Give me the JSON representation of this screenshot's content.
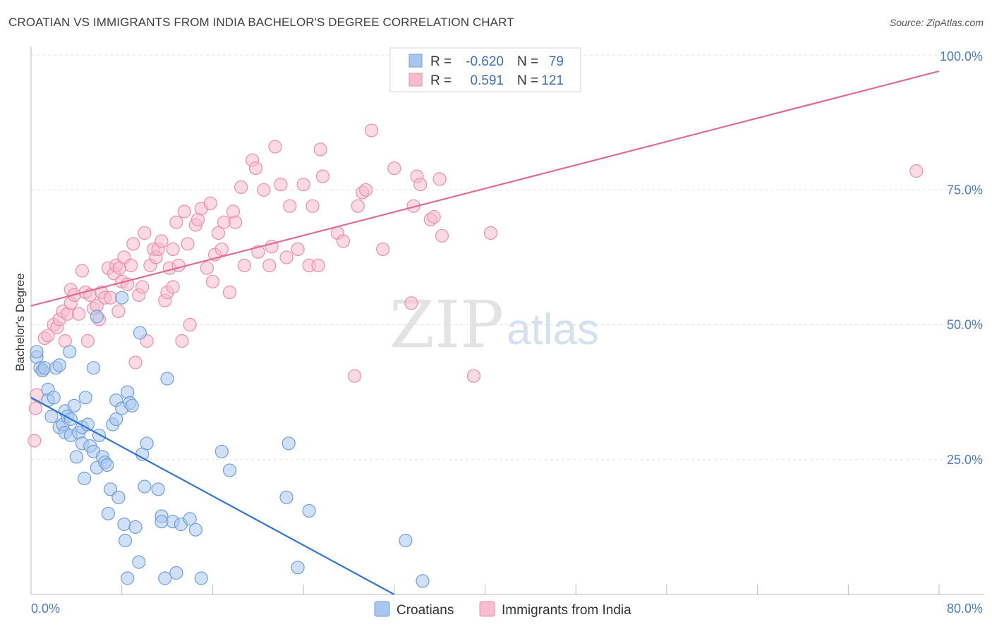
{
  "title": "CROATIAN VS IMMIGRANTS FROM INDIA BACHELOR'S DEGREE CORRELATION CHART",
  "source": "Source: ZipAtlas.com",
  "watermark": {
    "zip": "ZIP",
    "atlas": "atlas"
  },
  "legend_top": {
    "rows": [
      {
        "r_label": "R =",
        "r_value": "-0.620",
        "n_label": "N =",
        "n_value": "79"
      },
      {
        "r_label": "R =",
        "r_value": "0.591",
        "n_label": "N =",
        "n_value": "121"
      }
    ]
  },
  "chart_data": {
    "type": "scatter",
    "title": "CROATIAN VS IMMIGRANTS FROM INDIA BACHELOR'S DEGREE CORRELATION CHART",
    "xlabel": "",
    "ylabel": "Bachelor's Degree",
    "xlim": [
      0,
      80
    ],
    "ylim": [
      0,
      100
    ],
    "x_tick_labels": [
      "0.0%",
      "80.0%"
    ],
    "y_tick_labels": [
      "25.0%",
      "50.0%",
      "75.0%",
      "100.0%"
    ],
    "y_ticks": [
      25,
      50,
      75,
      100
    ],
    "grid": true,
    "legend_position": "bottom",
    "colors": {
      "croatians_fill": "#a9c7ee",
      "croatians_stroke": "#6f9fdc",
      "croatians_line": "#2f75d6",
      "india_fill": "#f7bccd",
      "india_stroke": "#eb8fab",
      "india_line": "#e06b94"
    },
    "series": [
      {
        "name": "Croatians",
        "trend": {
          "x0": 0,
          "y0": 36.5,
          "x1": 32,
          "y1": 0
        },
        "points": [
          [
            0.5,
            44
          ],
          [
            0.5,
            45
          ],
          [
            0.8,
            42
          ],
          [
            1,
            41.5
          ],
          [
            1.2,
            42
          ],
          [
            1.5,
            38
          ],
          [
            1.5,
            36
          ],
          [
            1.8,
            33
          ],
          [
            2,
            36.5
          ],
          [
            2.2,
            42
          ],
          [
            2.5,
            42.5
          ],
          [
            2.5,
            31
          ],
          [
            2.8,
            31.5
          ],
          [
            3,
            30
          ],
          [
            3,
            34
          ],
          [
            3.2,
            33
          ],
          [
            3.4,
            45
          ],
          [
            3.5,
            29.5
          ],
          [
            3.5,
            32.5
          ],
          [
            3.8,
            35
          ],
          [
            4,
            25.5
          ],
          [
            4.2,
            30
          ],
          [
            4.5,
            31
          ],
          [
            4.5,
            28
          ],
          [
            4.7,
            21.5
          ],
          [
            4.8,
            36.5
          ],
          [
            5,
            31.5
          ],
          [
            5.2,
            27.5
          ],
          [
            5.5,
            42
          ],
          [
            5.5,
            26.5
          ],
          [
            5.8,
            51.5
          ],
          [
            5.8,
            23.5
          ],
          [
            6,
            29.5
          ],
          [
            6.3,
            25.5
          ],
          [
            6.5,
            24.5
          ],
          [
            6.7,
            24
          ],
          [
            6.8,
            15
          ],
          [
            7,
            19.5
          ],
          [
            7.2,
            31.5
          ],
          [
            7.5,
            36
          ],
          [
            7.5,
            32.5
          ],
          [
            7.7,
            18
          ],
          [
            8,
            34.5
          ],
          [
            8,
            55
          ],
          [
            8.2,
            13
          ],
          [
            8.3,
            10
          ],
          [
            8.5,
            37.5
          ],
          [
            8.5,
            3
          ],
          [
            8.7,
            35.5
          ],
          [
            8.9,
            35
          ],
          [
            9.2,
            12.5
          ],
          [
            9.5,
            6
          ],
          [
            9.6,
            48.5
          ],
          [
            9.8,
            26
          ],
          [
            10,
            20
          ],
          [
            10.2,
            28
          ],
          [
            11.2,
            19.5
          ],
          [
            11.5,
            14.5
          ],
          [
            11.5,
            13.5
          ],
          [
            11.8,
            3
          ],
          [
            12,
            40
          ],
          [
            12.5,
            13.5
          ],
          [
            12.8,
            4
          ],
          [
            13.2,
            13
          ],
          [
            14,
            14
          ],
          [
            14.5,
            12
          ],
          [
            15,
            3
          ],
          [
            16.8,
            26.5
          ],
          [
            17.5,
            23
          ],
          [
            22.5,
            18
          ],
          [
            22.7,
            28
          ],
          [
            23.5,
            5
          ],
          [
            24.5,
            15.5
          ],
          [
            33,
            10
          ],
          [
            34.5,
            2.5
          ]
        ]
      },
      {
        "name": "Immigrants from India",
        "trend": {
          "x0": 0,
          "y0": 53.5,
          "x1": 80,
          "y1": 97
        },
        "points": [
          [
            0.3,
            28.5
          ],
          [
            0.4,
            34.5
          ],
          [
            0.5,
            37
          ],
          [
            1,
            41.5
          ],
          [
            1.2,
            47.5
          ],
          [
            1.5,
            48
          ],
          [
            2,
            50
          ],
          [
            2.3,
            49.5
          ],
          [
            2.5,
            51
          ],
          [
            2.8,
            52.5
          ],
          [
            3,
            47
          ],
          [
            3.2,
            52
          ],
          [
            3.5,
            54
          ],
          [
            3.5,
            56.5
          ],
          [
            3.8,
            55.5
          ],
          [
            4.2,
            52
          ],
          [
            4.5,
            60
          ],
          [
            4.8,
            56
          ],
          [
            5,
            47
          ],
          [
            5.2,
            55.5
          ],
          [
            5.5,
            53
          ],
          [
            5.8,
            53.5
          ],
          [
            6,
            51
          ],
          [
            6.2,
            56
          ],
          [
            6.5,
            55
          ],
          [
            6.8,
            60.5
          ],
          [
            7,
            55
          ],
          [
            7.3,
            59.5
          ],
          [
            7.5,
            61
          ],
          [
            7.7,
            52.5
          ],
          [
            7.8,
            60.5
          ],
          [
            8,
            58
          ],
          [
            8.2,
            62.5
          ],
          [
            8.5,
            57.5
          ],
          [
            8.8,
            61
          ],
          [
            9,
            65
          ],
          [
            9.2,
            43
          ],
          [
            9.5,
            55.5
          ],
          [
            9.8,
            57
          ],
          [
            10,
            67
          ],
          [
            10.2,
            47
          ],
          [
            10.5,
            61
          ],
          [
            10.8,
            64
          ],
          [
            11,
            62.5
          ],
          [
            11.2,
            64
          ],
          [
            11.5,
            65.5
          ],
          [
            11.8,
            54.5
          ],
          [
            12,
            56
          ],
          [
            12.2,
            60.5
          ],
          [
            12.5,
            57
          ],
          [
            12.5,
            64
          ],
          [
            12.8,
            69
          ],
          [
            13,
            61
          ],
          [
            13.3,
            47
          ],
          [
            13.5,
            71
          ],
          [
            13.8,
            65
          ],
          [
            14,
            50
          ],
          [
            14.5,
            68.5
          ],
          [
            14.7,
            69.5
          ],
          [
            15,
            71.5
          ],
          [
            15.5,
            60.5
          ],
          [
            15.8,
            72.5
          ],
          [
            16,
            58
          ],
          [
            16.2,
            63
          ],
          [
            16.5,
            67
          ],
          [
            16.8,
            64
          ],
          [
            17,
            69
          ],
          [
            17.5,
            56
          ],
          [
            17.8,
            71
          ],
          [
            18,
            69
          ],
          [
            18.5,
            75.5
          ],
          [
            18.8,
            61
          ],
          [
            19.5,
            80.5
          ],
          [
            19.8,
            79
          ],
          [
            20,
            63.5
          ],
          [
            20.5,
            75
          ],
          [
            21,
            61
          ],
          [
            21.2,
            64.5
          ],
          [
            21.5,
            83
          ],
          [
            22,
            76
          ],
          [
            22.5,
            62.5
          ],
          [
            22.8,
            72
          ],
          [
            23.5,
            64
          ],
          [
            24,
            76
          ],
          [
            24.5,
            61
          ],
          [
            24.8,
            72
          ],
          [
            25.3,
            61
          ],
          [
            25.5,
            82.5
          ],
          [
            25.7,
            77.5
          ],
          [
            27,
            67
          ],
          [
            27.5,
            65.5
          ],
          [
            28.5,
            40.5
          ],
          [
            28.8,
            72
          ],
          [
            29.2,
            74.5
          ],
          [
            29.5,
            75
          ],
          [
            30,
            86
          ],
          [
            31,
            64
          ],
          [
            32,
            79
          ],
          [
            33.5,
            54
          ],
          [
            33.7,
            72
          ],
          [
            34,
            77.5
          ],
          [
            34.3,
            76
          ],
          [
            35.2,
            69.5
          ],
          [
            35.5,
            70
          ],
          [
            36,
            77
          ],
          [
            36.2,
            66.5
          ],
          [
            39,
            40.5
          ],
          [
            40.5,
            67
          ],
          [
            78,
            78.5
          ]
        ]
      }
    ]
  }
}
